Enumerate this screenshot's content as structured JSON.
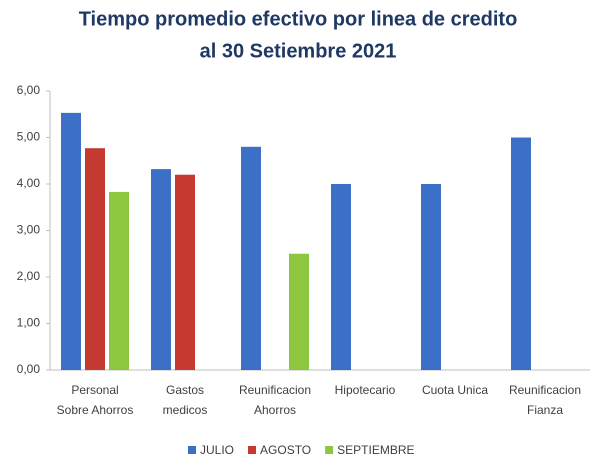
{
  "chart_data": {
    "type": "bar",
    "title": [
      "Tiempo promedio efectivo por linea de credito",
      "al 30 Setiembre 2021"
    ],
    "categories": [
      [
        "Personal",
        "Sobre Ahorros"
      ],
      [
        "Gastos",
        "medicos"
      ],
      [
        "Reunificacion",
        "Ahorros"
      ],
      [
        "Hipotecario"
      ],
      [
        "Cuota Unica"
      ],
      [
        "Reunificacion",
        "Fianza"
      ]
    ],
    "series": [
      {
        "name": "JULIO",
        "color": "#3b70c6",
        "values": [
          5.53,
          4.32,
          4.8,
          4.0,
          4.0,
          5.0
        ]
      },
      {
        "name": "AGOSTO",
        "color": "#c43a30",
        "values": [
          4.77,
          4.2,
          null,
          null,
          null,
          null
        ]
      },
      {
        "name": "SEPTIEMBRE",
        "color": "#8dc63f",
        "values": [
          3.83,
          null,
          2.5,
          null,
          null,
          null
        ]
      }
    ],
    "ylim": [
      0,
      6
    ],
    "yticks": [
      {
        "value": 0,
        "label": "0,00"
      },
      {
        "value": 1,
        "label": "1,00"
      },
      {
        "value": 2,
        "label": "2,00"
      },
      {
        "value": 3,
        "label": "3,00"
      },
      {
        "value": 4,
        "label": "4,00"
      },
      {
        "value": 5,
        "label": "5,00"
      },
      {
        "value": 6,
        "label": "6,00"
      }
    ],
    "legend": "bottom"
  }
}
